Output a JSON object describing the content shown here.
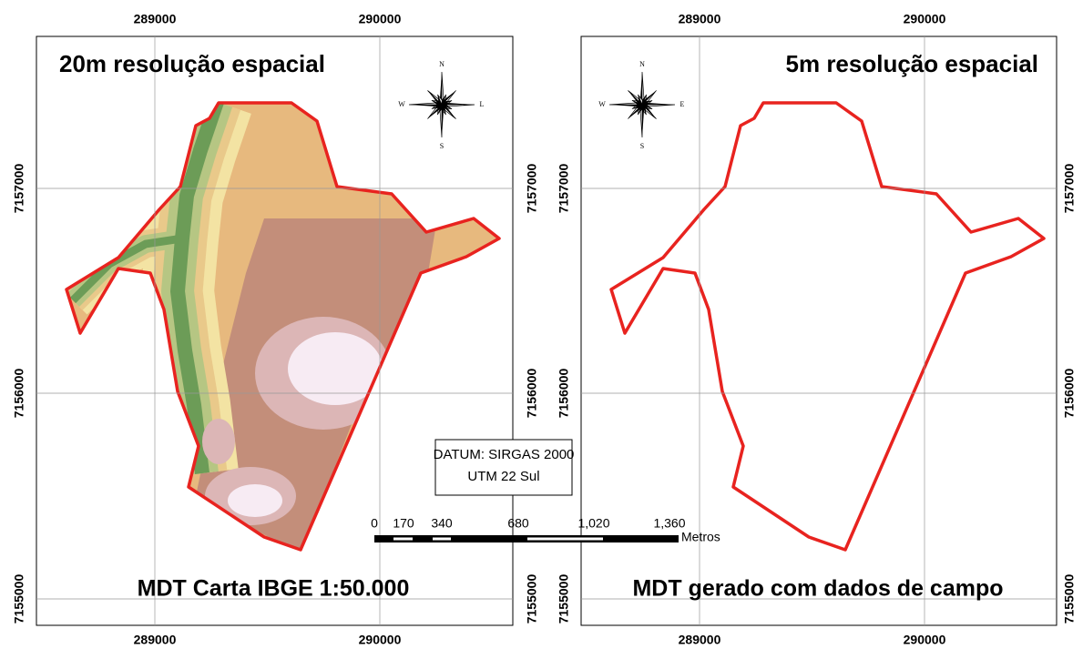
{
  "panels": [
    {
      "title": "20m resolução espacial",
      "caption": "MDT Carta IBGE 1:50.000",
      "compass": {
        "n": "N",
        "s": "S",
        "w": "W",
        "e": "L"
      },
      "x_labels": [
        "289000",
        "290000"
      ],
      "y_labels": [
        "7157000",
        "7156000",
        "7155000"
      ]
    },
    {
      "title": "5m resolução espacial",
      "caption": "MDT gerado com dados de campo",
      "compass": {
        "n": "N",
        "s": "S",
        "w": "W",
        "e": "E"
      },
      "x_labels": [
        "289000",
        "290000"
      ],
      "y_labels": [
        "7157000",
        "7156000",
        "7155000"
      ]
    }
  ],
  "datum": {
    "line1": "DATUM: SIRGAS 2000",
    "line2": "UTM 22 Sul"
  },
  "scale_bar": {
    "labels": [
      "0",
      "170",
      "340",
      "680",
      "1,020",
      "1,360"
    ],
    "unit": "Metros"
  }
}
